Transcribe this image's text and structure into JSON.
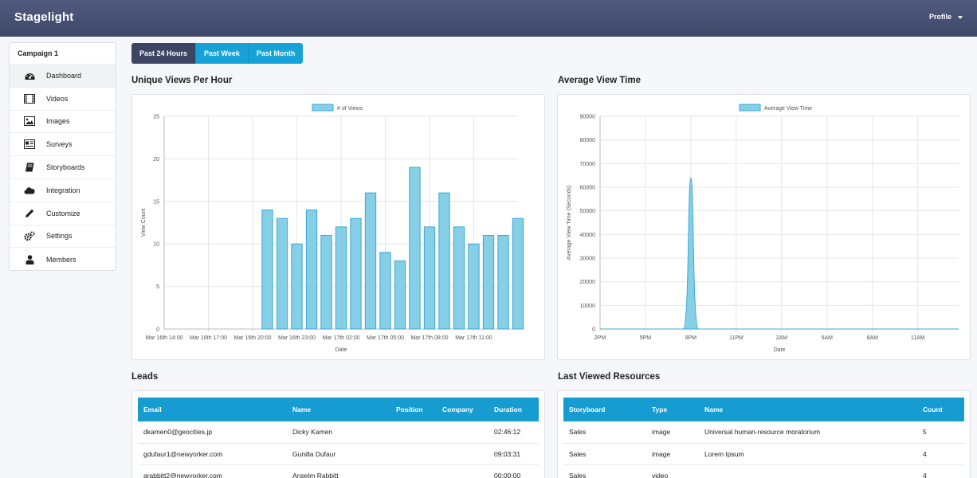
{
  "app": {
    "brand": "Stagelight",
    "profile_label": "Profile"
  },
  "sidebar": {
    "title": "Campaign 1",
    "items": [
      {
        "label": "Dashboard",
        "icon": "dashboard-icon"
      },
      {
        "label": "Videos",
        "icon": "film-icon"
      },
      {
        "label": "Images",
        "icon": "image-icon"
      },
      {
        "label": "Surveys",
        "icon": "survey-icon"
      },
      {
        "label": "Storyboards",
        "icon": "book-icon"
      },
      {
        "label": "Integration",
        "icon": "cloud-icon"
      },
      {
        "label": "Customize",
        "icon": "pencil-icon"
      },
      {
        "label": "Settings",
        "icon": "gears-icon"
      },
      {
        "label": "Members",
        "icon": "user-icon"
      }
    ]
  },
  "range": {
    "options": [
      "Past 24 Hours",
      "Past Week",
      "Past Month"
    ],
    "selected": "Past 24 Hours"
  },
  "sections": {
    "views_title": "Unique Views Per Hour",
    "avg_title": "Average View Time",
    "leads_title": "Leads",
    "resources_title": "Last Viewed Resources"
  },
  "colors": {
    "accent": "#17a2d7",
    "navbar": "#46506f",
    "bar_fill": "#86cfe6",
    "bar_stroke": "#3aa8d2"
  },
  "chart_data": [
    {
      "type": "bar",
      "legend": "# of Views",
      "xlabel": "Date",
      "ylabel": "View Count",
      "ylim": [
        0,
        25
      ],
      "yticks": [
        0,
        5,
        10,
        15,
        20,
        25
      ],
      "xtick_labels": [
        "Mar 16th 14:00",
        "Mar 16th 17:00",
        "Mar 16th 20:00",
        "Mar 16th 23:00",
        "Mar 17th 02:00",
        "Mar 17th 05:00",
        "Mar 17th 08:00",
        "Mar 17th 11:00"
      ],
      "values": [
        0,
        0,
        0,
        0,
        0,
        0,
        14,
        13,
        10,
        14,
        11,
        12,
        13,
        16,
        9,
        8,
        19,
        12,
        16,
        12,
        10,
        11,
        11,
        13
      ],
      "grid": true,
      "legend_position": "top"
    },
    {
      "type": "area",
      "legend": "Average View Time",
      "xlabel": "Date",
      "ylabel": "Average View Time (Seconds)",
      "ylim": [
        0,
        90000
      ],
      "yticks": [
        0,
        10000,
        20000,
        30000,
        40000,
        50000,
        60000,
        70000,
        80000,
        90000
      ],
      "xtick_labels": [
        "2PM",
        "5PM",
        "8PM",
        "11PM",
        "2AM",
        "5AM",
        "8AM",
        "11AM"
      ],
      "x_hours": [
        14,
        19.8,
        20,
        20.2,
        25.4
      ],
      "values": [
        0,
        0,
        64000,
        0,
        0
      ],
      "grid": true,
      "legend_position": "top"
    }
  ],
  "leads": {
    "columns": [
      "Email",
      "Name",
      "Position",
      "Company",
      "Duration"
    ],
    "rows": [
      [
        "dkamen0@geocities.jp",
        "Dicky Kamen",
        "",
        "",
        "02:46:12"
      ],
      [
        "gdufaur1@newyorker.com",
        "Gunilla Dufaur",
        "",
        "",
        "09:03:31"
      ],
      [
        "arabbitt2@newyorker.com",
        "Anselm Rabbitt",
        "",
        "",
        "00:00:00"
      ]
    ]
  },
  "resources": {
    "columns": [
      "Storyboard",
      "Type",
      "Name",
      "Count"
    ],
    "rows": [
      [
        "Sales",
        "image",
        "Universal human-resource moratorium",
        "5"
      ],
      [
        "Sales",
        "image",
        "Lorem Ipsum",
        "4"
      ],
      [
        "Sales",
        "video",
        "",
        "4"
      ]
    ]
  }
}
